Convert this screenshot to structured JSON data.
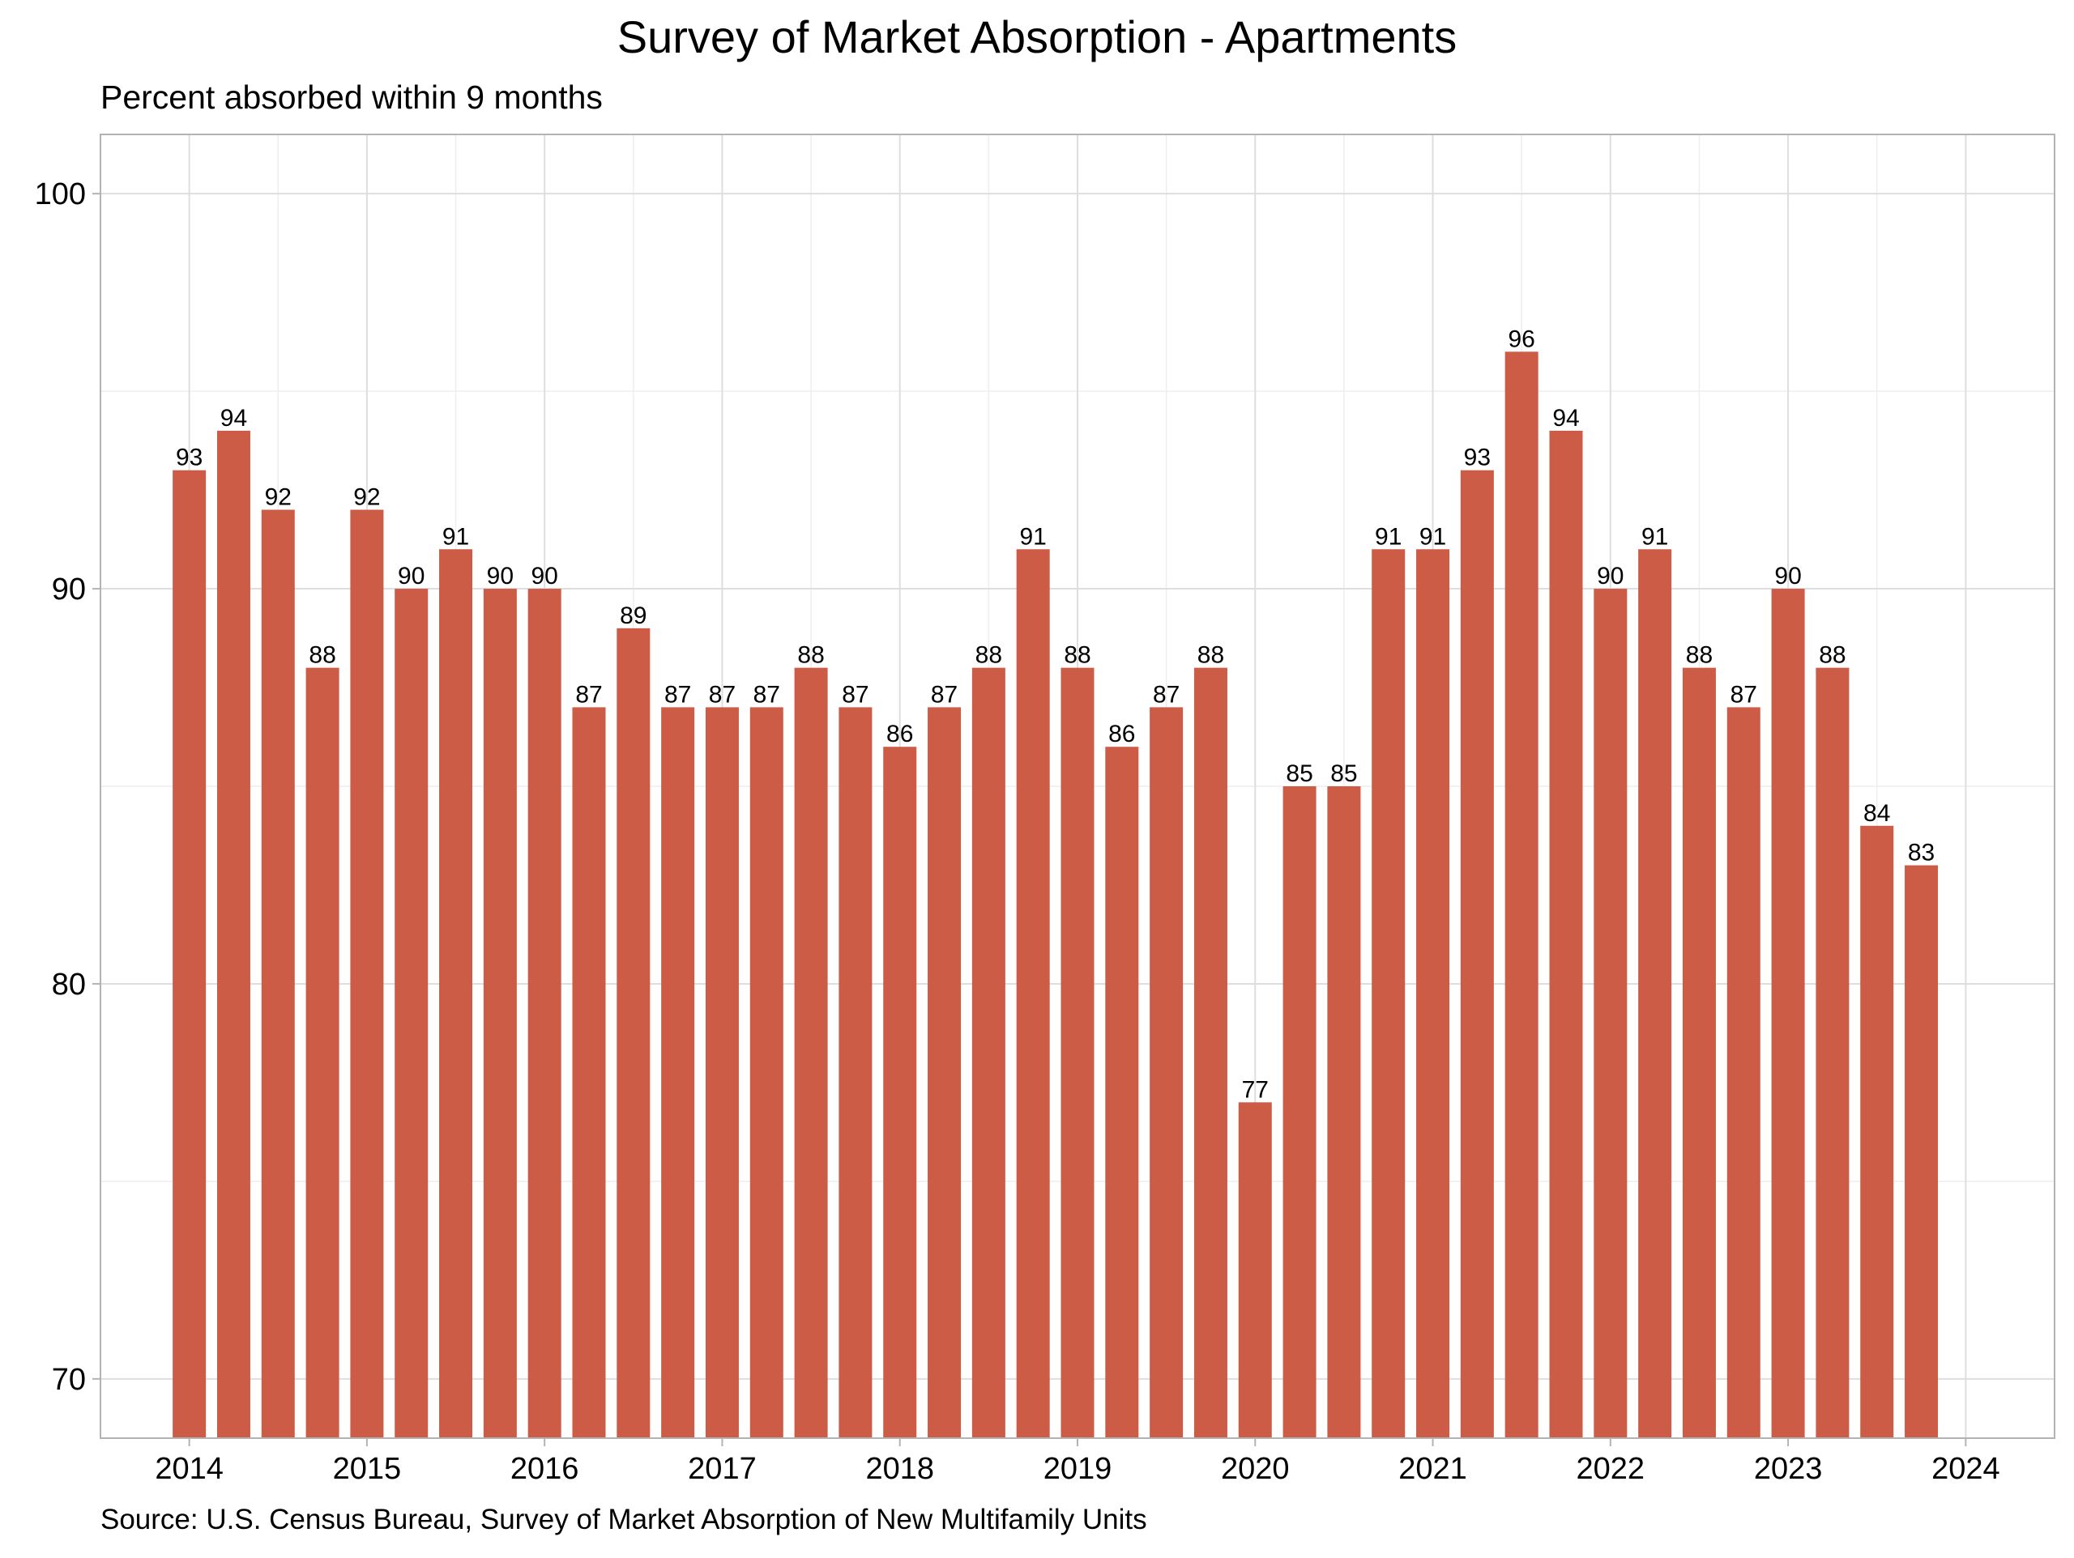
{
  "title": "Survey of Market Absorption - Apartments",
  "subtitle": "Percent absorbed within 9 months",
  "caption": "Source: U.S. Census Bureau, Survey of Market Absorption of New Multifamily Units",
  "colors": {
    "bar": "#cd5c47",
    "grid_major": "#dedede",
    "grid_minor": "#eeeeee",
    "panel_border": "#b3b3b3",
    "axis_text": "#000000"
  },
  "chart_data": {
    "type": "bar",
    "title": "Survey of Market Absorption - Apartments",
    "subtitle": "Percent absorbed within 9 months",
    "xlabel": "",
    "ylabel": "",
    "x_axis_type": "date",
    "x_ticks": [
      "2014",
      "2015",
      "2016",
      "2017",
      "2018",
      "2019",
      "2020",
      "2021",
      "2022",
      "2023",
      "2024"
    ],
    "ylim": [
      68.5,
      101.5
    ],
    "y_ticks": [
      70,
      80,
      90,
      100
    ],
    "grid": true,
    "legend": "none",
    "categories": [
      "2014-01",
      "2014-04",
      "2014-07",
      "2014-10",
      "2015-01",
      "2015-04",
      "2015-07",
      "2015-10",
      "2016-01",
      "2016-04",
      "2016-07",
      "2016-10",
      "2017-01",
      "2017-04",
      "2017-07",
      "2017-10",
      "2018-01",
      "2018-04",
      "2018-07",
      "2018-10",
      "2019-01",
      "2019-04",
      "2019-07",
      "2019-10",
      "2020-01",
      "2020-04",
      "2020-07",
      "2020-10",
      "2021-01",
      "2021-04",
      "2021-07",
      "2021-10",
      "2022-01",
      "2022-04",
      "2022-07",
      "2022-10",
      "2023-01",
      "2023-04",
      "2023-07",
      "2023-10"
    ],
    "values": [
      93,
      94,
      92,
      88,
      92,
      90,
      91,
      90,
      90,
      87,
      89,
      87,
      87,
      87,
      88,
      87,
      86,
      87,
      88,
      91,
      88,
      86,
      87,
      88,
      77,
      85,
      85,
      91,
      91,
      93,
      96,
      94,
      90,
      91,
      88,
      87,
      90,
      88,
      84,
      83
    ],
    "data_labels": true
  }
}
